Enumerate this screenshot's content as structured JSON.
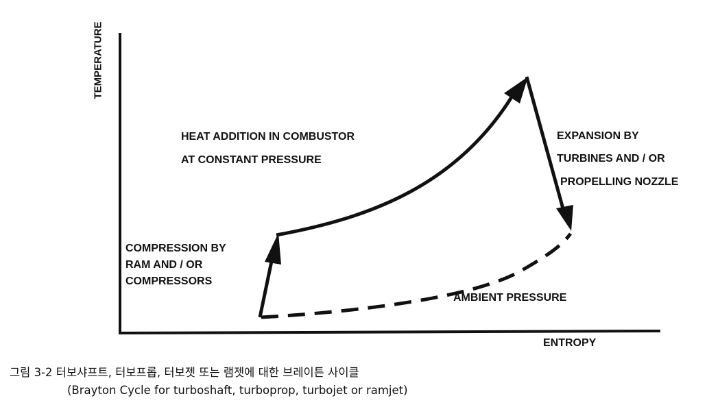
{
  "diagram": {
    "axes": {
      "y_label": "TEMPERATURE",
      "x_label": "ENTROPY"
    },
    "processes": {
      "compression": [
        "COMPRESSION BY",
        "RAM AND / OR",
        "COMPRESSORS"
      ],
      "heat_addition": [
        "HEAT ADDITION IN COMBUSTOR",
        "AT CONSTANT PRESSURE"
      ],
      "expansion": [
        "EXPANSION BY",
        "TURBINES AND / OR",
        "PROPELLING NOZZLE"
      ],
      "ambient": "AMBIENT PRESSURE"
    },
    "colors": {
      "ink": "#111111",
      "background": "#ffffff"
    }
  },
  "caption": {
    "line1": "그림 3-2 터보샤프트, 터보프롭, 터보젯 또는 램젯에 대한 브레이튼 사이클",
    "line2": "(Brayton Cycle for turboshaft, turboprop, turbojet or ramjet)"
  }
}
